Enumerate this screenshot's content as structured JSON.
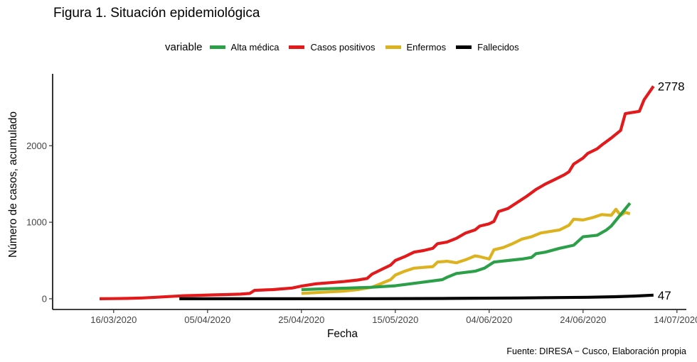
{
  "title": "Figura 1. Situación epidemiológica",
  "source": "Fuente: DIRESA − Cusco, Elaboración propia",
  "legend": {
    "title": "variable",
    "items": [
      {
        "label": "Alta médica",
        "color": "#2ca049"
      },
      {
        "label": "Casos positivos",
        "color": "#e31a1c"
      },
      {
        "label": "Enfermos",
        "color": "#ddb21f"
      },
      {
        "label": "Fallecidos",
        "color": "#000000"
      }
    ]
  },
  "chart_data": {
    "type": "line",
    "xlabel": "Fecha",
    "ylabel": "Número de casos, acumulado",
    "xlim": [
      "2020-03-03",
      "2020-07-16"
    ],
    "ylim": [
      -140,
      2940
    ],
    "x_ticks": [
      {
        "date": "2020-03-16",
        "label": "16/03/2020"
      },
      {
        "date": "2020-04-05",
        "label": "05/04/2020"
      },
      {
        "date": "2020-04-25",
        "label": "25/04/2020"
      },
      {
        "date": "2020-05-15",
        "label": "15/05/2020"
      },
      {
        "date": "2020-06-04",
        "label": "04/06/2020"
      },
      {
        "date": "2020-06-24",
        "label": "24/06/2020"
      },
      {
        "date": "2020-07-14",
        "label": "14/07/2020"
      }
    ],
    "y_ticks": [
      0,
      1000,
      2000
    ],
    "grid": false,
    "legend_position": "top",
    "series": [
      {
        "name": "Casos positivos",
        "color": "#e31a1c",
        "points": [
          [
            "2020-03-13",
            0
          ],
          [
            "2020-03-16",
            2
          ],
          [
            "2020-03-19",
            5
          ],
          [
            "2020-03-22",
            10
          ],
          [
            "2020-03-25",
            20
          ],
          [
            "2020-03-28",
            30
          ],
          [
            "2020-03-31",
            40
          ],
          [
            "2020-04-03",
            45
          ],
          [
            "2020-04-06",
            50
          ],
          [
            "2020-04-09",
            55
          ],
          [
            "2020-04-12",
            60
          ],
          [
            "2020-04-14",
            70
          ],
          [
            "2020-04-15",
            110
          ],
          [
            "2020-04-17",
            115
          ],
          [
            "2020-04-19",
            120
          ],
          [
            "2020-04-21",
            130
          ],
          [
            "2020-04-23",
            140
          ],
          [
            "2020-04-25",
            165
          ],
          [
            "2020-04-28",
            195
          ],
          [
            "2020-05-01",
            210
          ],
          [
            "2020-05-04",
            225
          ],
          [
            "2020-05-07",
            245
          ],
          [
            "2020-05-09",
            265
          ],
          [
            "2020-05-10",
            320
          ],
          [
            "2020-05-12",
            380
          ],
          [
            "2020-05-14",
            440
          ],
          [
            "2020-05-15",
            500
          ],
          [
            "2020-05-17",
            550
          ],
          [
            "2020-05-19",
            610
          ],
          [
            "2020-05-21",
            630
          ],
          [
            "2020-05-23",
            660
          ],
          [
            "2020-05-24",
            720
          ],
          [
            "2020-05-26",
            740
          ],
          [
            "2020-05-28",
            790
          ],
          [
            "2020-05-30",
            860
          ],
          [
            "2020-06-01",
            900
          ],
          [
            "2020-06-02",
            950
          ],
          [
            "2020-06-04",
            980
          ],
          [
            "2020-06-05",
            1010
          ],
          [
            "2020-06-06",
            1140
          ],
          [
            "2020-06-08",
            1180
          ],
          [
            "2020-06-10",
            1260
          ],
          [
            "2020-06-12",
            1340
          ],
          [
            "2020-06-14",
            1430
          ],
          [
            "2020-06-16",
            1500
          ],
          [
            "2020-06-18",
            1560
          ],
          [
            "2020-06-20",
            1620
          ],
          [
            "2020-06-21",
            1660
          ],
          [
            "2020-06-22",
            1760
          ],
          [
            "2020-06-24",
            1840
          ],
          [
            "2020-06-25",
            1900
          ],
          [
            "2020-06-27",
            1960
          ],
          [
            "2020-06-28",
            2010
          ],
          [
            "2020-06-30",
            2100
          ],
          [
            "2020-07-02",
            2200
          ],
          [
            "2020-07-03",
            2420
          ],
          [
            "2020-07-05",
            2440
          ],
          [
            "2020-07-06",
            2450
          ],
          [
            "2020-07-07",
            2600
          ],
          [
            "2020-07-09",
            2778
          ]
        ]
      },
      {
        "name": "Enfermos",
        "color": "#ddb21f",
        "points": [
          [
            "2020-04-25",
            70
          ],
          [
            "2020-04-28",
            80
          ],
          [
            "2020-05-01",
            90
          ],
          [
            "2020-05-04",
            100
          ],
          [
            "2020-05-07",
            120
          ],
          [
            "2020-05-10",
            150
          ],
          [
            "2020-05-12",
            200
          ],
          [
            "2020-05-14",
            250
          ],
          [
            "2020-05-15",
            310
          ],
          [
            "2020-05-17",
            360
          ],
          [
            "2020-05-19",
            400
          ],
          [
            "2020-05-21",
            410
          ],
          [
            "2020-05-23",
            420
          ],
          [
            "2020-05-24",
            480
          ],
          [
            "2020-05-26",
            490
          ],
          [
            "2020-05-28",
            470
          ],
          [
            "2020-05-30",
            510
          ],
          [
            "2020-06-01",
            560
          ],
          [
            "2020-06-02",
            550
          ],
          [
            "2020-06-04",
            520
          ],
          [
            "2020-06-05",
            640
          ],
          [
            "2020-06-07",
            670
          ],
          [
            "2020-06-09",
            720
          ],
          [
            "2020-06-11",
            780
          ],
          [
            "2020-06-13",
            810
          ],
          [
            "2020-06-15",
            860
          ],
          [
            "2020-06-17",
            880
          ],
          [
            "2020-06-19",
            900
          ],
          [
            "2020-06-21",
            960
          ],
          [
            "2020-06-22",
            1040
          ],
          [
            "2020-06-24",
            1030
          ],
          [
            "2020-06-26",
            1060
          ],
          [
            "2020-06-28",
            1100
          ],
          [
            "2020-06-30",
            1090
          ],
          [
            "2020-07-01",
            1170
          ],
          [
            "2020-07-02",
            1090
          ],
          [
            "2020-07-03",
            1130
          ],
          [
            "2020-07-04",
            1110
          ]
        ]
      },
      {
        "name": "Alta médica",
        "color": "#2ca049",
        "points": [
          [
            "2020-04-25",
            120
          ],
          [
            "2020-04-30",
            130
          ],
          [
            "2020-05-05",
            140
          ],
          [
            "2020-05-10",
            150
          ],
          [
            "2020-05-15",
            170
          ],
          [
            "2020-05-20",
            210
          ],
          [
            "2020-05-25",
            250
          ],
          [
            "2020-05-26",
            280
          ],
          [
            "2020-05-28",
            330
          ],
          [
            "2020-06-01",
            360
          ],
          [
            "2020-06-03",
            400
          ],
          [
            "2020-06-05",
            480
          ],
          [
            "2020-06-08",
            500
          ],
          [
            "2020-06-11",
            520
          ],
          [
            "2020-06-13",
            540
          ],
          [
            "2020-06-14",
            590
          ],
          [
            "2020-06-16",
            610
          ],
          [
            "2020-06-19",
            660
          ],
          [
            "2020-06-22",
            700
          ],
          [
            "2020-06-24",
            810
          ],
          [
            "2020-06-27",
            830
          ],
          [
            "2020-06-29",
            900
          ],
          [
            "2020-06-30",
            950
          ],
          [
            "2020-07-02",
            1100
          ],
          [
            "2020-07-04",
            1250
          ]
        ]
      },
      {
        "name": "Fallecidos",
        "color": "#000000",
        "points": [
          [
            "2020-03-30",
            0
          ],
          [
            "2020-04-20",
            0
          ],
          [
            "2020-05-10",
            1
          ],
          [
            "2020-05-25",
            4
          ],
          [
            "2020-06-10",
            10
          ],
          [
            "2020-06-25",
            20
          ],
          [
            "2020-07-01",
            27
          ],
          [
            "2020-07-05",
            35
          ],
          [
            "2020-07-09",
            47
          ]
        ]
      }
    ],
    "end_labels": [
      {
        "series": "Casos positivos",
        "text": "2778"
      },
      {
        "series": "Fallecidos",
        "text": "47"
      }
    ]
  }
}
